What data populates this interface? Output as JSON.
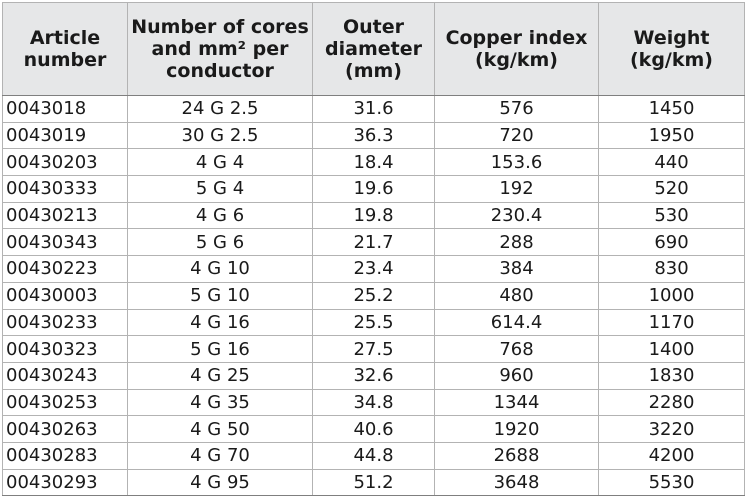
{
  "table": {
    "headers": [
      [
        "Article",
        "number"
      ],
      [
        "Number of cores",
        "and mm² per",
        "conductor"
      ],
      [
        "Outer",
        "diameter",
        "(mm)"
      ],
      [
        "Copper index",
        "(kg/km)"
      ],
      [
        "Weight",
        "(kg/km)"
      ]
    ],
    "rows": [
      [
        "0043018",
        "24 G 2.5",
        "31.6",
        "576",
        "1450"
      ],
      [
        "0043019",
        "30 G 2.5",
        "36.3",
        "720",
        "1950"
      ],
      [
        "00430203",
        "4 G 4",
        "18.4",
        "153.6",
        "440"
      ],
      [
        "00430333",
        "5 G 4",
        "19.6",
        "192",
        "520"
      ],
      [
        "00430213",
        "4 G 6",
        "19.8",
        "230.4",
        "530"
      ],
      [
        "00430343",
        "5 G 6",
        "21.7",
        "288",
        "690"
      ],
      [
        "00430223",
        "4 G 10",
        "23.4",
        "384",
        "830"
      ],
      [
        "00430003",
        "5 G 10",
        "25.2",
        "480",
        "1000"
      ],
      [
        "00430233",
        "4 G 16",
        "25.5",
        "614.4",
        "1170"
      ],
      [
        "00430323",
        "5 G 16",
        "27.5",
        "768",
        "1400"
      ],
      [
        "00430243",
        "4 G 25",
        "32.6",
        "960",
        "1830"
      ],
      [
        "00430253",
        "4 G 35",
        "34.8",
        "1344",
        "2280"
      ],
      [
        "00430263",
        "4 G 50",
        "40.6",
        "1920",
        "3220"
      ],
      [
        "00430283",
        "4 G 70",
        "44.8",
        "2688",
        "4200"
      ],
      [
        "00430293",
        "4 G 95",
        "51.2",
        "3648",
        "5530"
      ]
    ]
  }
}
